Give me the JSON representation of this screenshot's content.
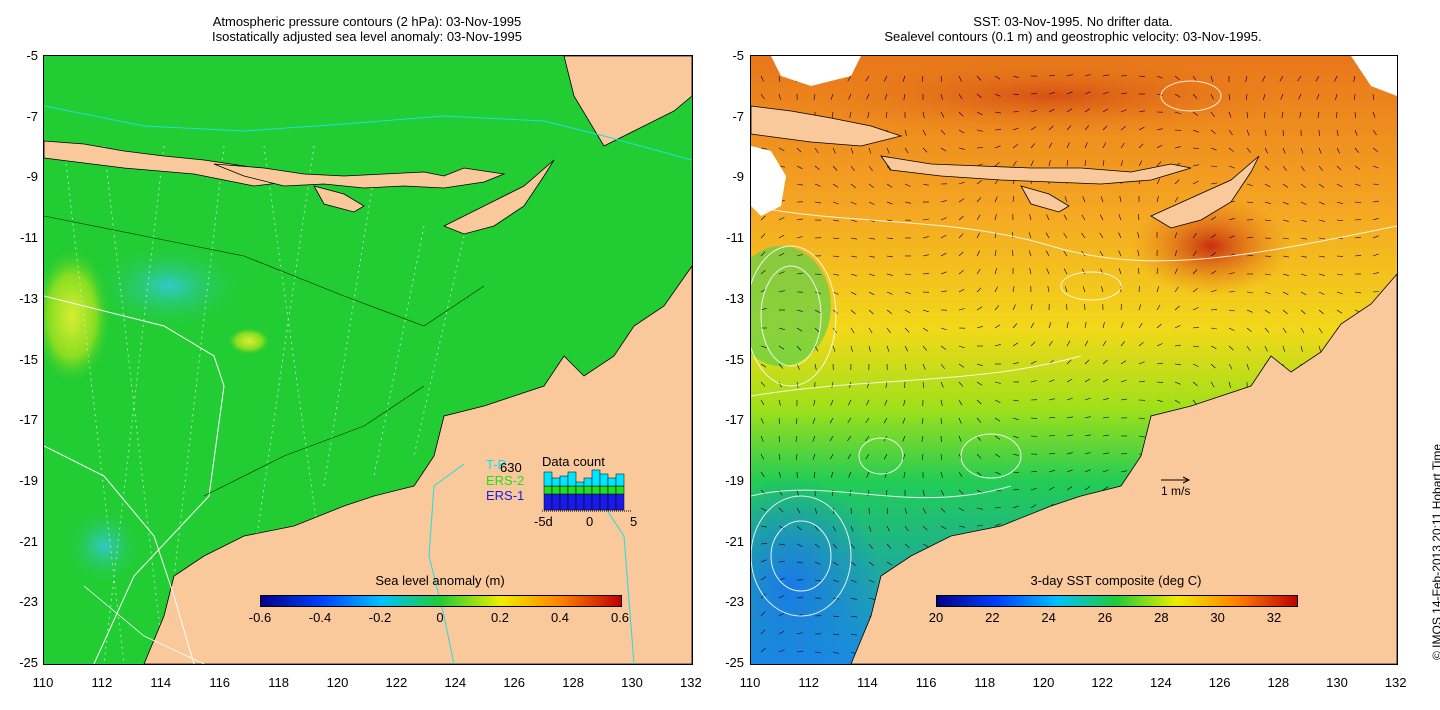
{
  "left": {
    "title_line1": "Atmospheric pressure contours (2 hPa): 03-Nov-1995",
    "title_line2": "Isostatically adjusted sea level anomaly: 03-Nov-1995",
    "colorbar": {
      "label": "Sea level anomaly (m)",
      "ticks": [
        "-0.6",
        "-0.4",
        "-0.2",
        "0",
        "0.2",
        "0.4",
        "0.6"
      ]
    },
    "legend": {
      "title": "Data count",
      "sat_labels": [
        "T-P",
        "ERS-2",
        "ERS-1"
      ],
      "count": "630",
      "axis_ticks": [
        "-5d",
        "0",
        "5"
      ],
      "colors": {
        "tp": "#00e5ff",
        "ers2": "#22dd22",
        "ers1": "#1a1ae6"
      }
    }
  },
  "right": {
    "title_line1": "SST: 03-Nov-1995. No drifter data.",
    "title_line2": "Sealevel contours (0.1 m) and geostrophic velocity: 03-Nov-1995.",
    "colorbar": {
      "label": "3-day SST composite (deg C)",
      "ticks": [
        "20",
        "22",
        "24",
        "26",
        "28",
        "30",
        "32"
      ]
    },
    "scale_label": "1 m/s"
  },
  "axes": {
    "y_ticks": [
      "-5",
      "-7",
      "-9",
      "-11",
      "-13",
      "-15",
      "-17",
      "-19",
      "-21",
      "-23",
      "-25"
    ],
    "x_ticks": [
      "110",
      "112",
      "114",
      "116",
      "118",
      "120",
      "122",
      "124",
      "126",
      "128",
      "130",
      "132"
    ]
  },
  "copyright": "© IMOS 14-Feb-2013 20:11 Hobart Time",
  "colors": {
    "land": "#f9c89b",
    "ocean_left": "#22cc33",
    "ocean_right": "#f5a623",
    "text": "#000000"
  }
}
